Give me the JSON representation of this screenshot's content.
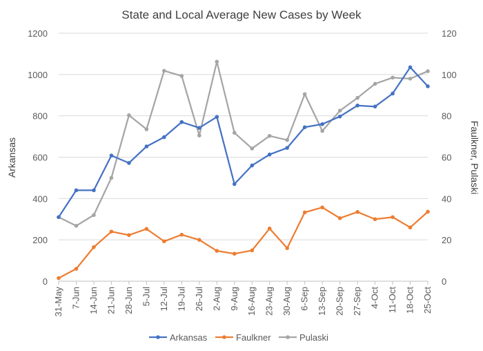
{
  "chart_data": {
    "type": "line",
    "title": "State and Local Average New Cases by Week",
    "categories": [
      "31-May",
      "7-Jun",
      "14-Jun",
      "21-Jun",
      "28-Jun",
      "5-Jul",
      "12-Jul",
      "19-Jul",
      "26-Jul",
      "2-Aug",
      "9-Aug",
      "16-Aug",
      "23-Aug",
      "30-Aug",
      "6-Sep",
      "13-Sep",
      "20-Sep",
      "27-Sep",
      "4-Oct",
      "11-Oct",
      "18-Oct",
      "25-Oct"
    ],
    "y_left": {
      "label": "Arkansas",
      "range": [
        0,
        1200
      ],
      "ticks": [
        "0",
        "200",
        "400",
        "600",
        "800",
        "1000",
        "1200"
      ]
    },
    "y_right": {
      "label": "Faulkner, Pulaski",
      "range": [
        0,
        120
      ],
      "ticks": [
        "0",
        "20",
        "40",
        "60",
        "80",
        "100",
        "120"
      ]
    },
    "grid": true,
    "legend_position": "bottom",
    "series": [
      {
        "name": "Arkansas",
        "axis": "left",
        "color": "#4472C4",
        "values": [
          310,
          440,
          440,
          608,
          572,
          652,
          697,
          770,
          742,
          795,
          470,
          560,
          613,
          645,
          745,
          760,
          797,
          850,
          845,
          908,
          1035,
          943
        ]
      },
      {
        "name": "Faulkner",
        "axis": "right",
        "color": "#ED7D31",
        "values": [
          1.5,
          6,
          16.5,
          24,
          22.3,
          25.3,
          19.3,
          22.5,
          20,
          14.7,
          13.3,
          14.9,
          25.5,
          16,
          33.3,
          35.7,
          30.5,
          33.5,
          30,
          31,
          26,
          33.6
        ]
      },
      {
        "name": "Pulaski",
        "axis": "right",
        "color": "#A5A5A5",
        "values": [
          31,
          26.8,
          32,
          50,
          80.3,
          73.5,
          101.8,
          99.3,
          70.5,
          106.2,
          71.8,
          64.2,
          70.3,
          68.3,
          90.5,
          72.7,
          82.5,
          88.7,
          95.5,
          98.5,
          98,
          101.6
        ]
      }
    ]
  }
}
